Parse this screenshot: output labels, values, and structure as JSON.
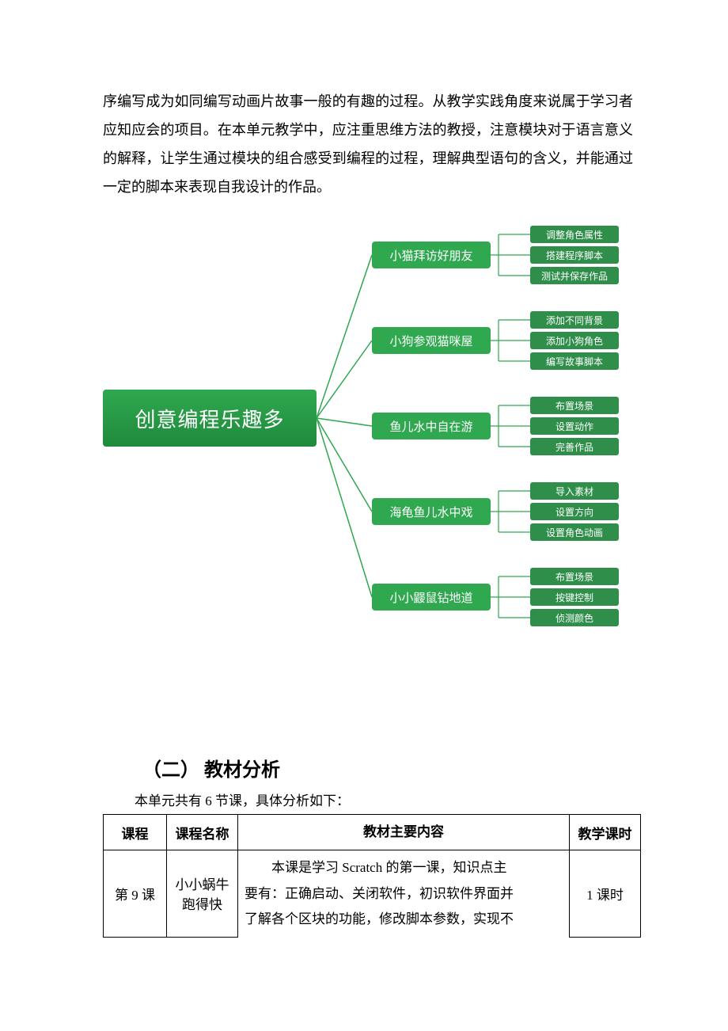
{
  "paragraph": "序编写成为如同编写动画片故事一般的有趣的过程。从教学实践角度来说属于学习者应知应会的项目。在本单元教学中，应注重思维方法的教授，注意模块对于语言意义的解释，让学生通过模块的组合感受到编程的过程，理解典型语句的含义，并能通过一定的脚本来表现自我设计的作品。",
  "diagram": {
    "root_color_start": "#2fa84f",
    "root_color_end": "#1f8a3c",
    "line_color": "#2fa84f",
    "node_color": "#2fa84f",
    "leaf_color": "#2f8f4a",
    "bracket_color": "#2fa84f",
    "root": "创意编程乐趣多",
    "sub_y": [
      60,
      168,
      276,
      384,
      492
    ],
    "subs": [
      {
        "label": "小猫拜访好朋友",
        "leaves": [
          "调整角色属性",
          "搭建程序脚本",
          "测试并保存作品"
        ]
      },
      {
        "label": "小狗参观猫咪屋",
        "leaves": [
          "添加不同背景",
          "添加小狗角色",
          "编写故事脚本"
        ]
      },
      {
        "label": "鱼儿水中自在游",
        "leaves": [
          "布置场景",
          "设置动作",
          "完善作品"
        ]
      },
      {
        "label": "海龟鱼儿水中戏",
        "leaves": [
          "导入素材",
          "设置方向",
          "设置角色动画"
        ]
      },
      {
        "label": "小小鼹鼠钻地道",
        "leaves": [
          "布置场景",
          "按键控制",
          "侦测颜色"
        ]
      }
    ]
  },
  "section2": {
    "heading": "（二） 教材分析",
    "intro": "本单元共有 6 节课，具体分析如下：",
    "table": {
      "headers": [
        "课程",
        "课程名称",
        "教材主要内容",
        "教学课时"
      ],
      "row": {
        "course": "第 9 课",
        "name": "小小蜗牛跑得快",
        "content_line1": "本课是学习 Scratch 的第一课，知识点主",
        "content_line2": "要有：正确启动、关闭软件，初识软件界面并",
        "content_line3": "了解各个区块的功能，修改脚本参数，实现不",
        "hours": "1 课时"
      }
    }
  }
}
